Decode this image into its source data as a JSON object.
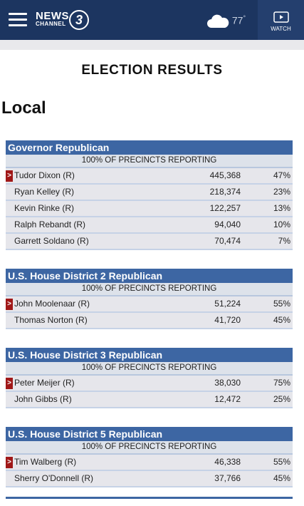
{
  "header": {
    "logo": {
      "line1": "NEWS",
      "line2": "CHANNEL",
      "number": "3"
    },
    "weather": {
      "temp": "77",
      "unit": "°"
    },
    "watch": "WATCH"
  },
  "page_title": "ELECTION RESULTS",
  "section": "Local",
  "races": [
    {
      "title": "Governor Republican",
      "reporting": "100% OF PRECINCTS REPORTING",
      "rows": [
        {
          "marker": ">",
          "name": "Tudor Dixon (R)",
          "votes": "445,368",
          "pct": "47%"
        },
        {
          "name": "Ryan Kelley (R)",
          "votes": "218,374",
          "pct": "23%"
        },
        {
          "name": "Kevin Rinke (R)",
          "votes": "122,257",
          "pct": "13%"
        },
        {
          "name": "Ralph Rebandt (R)",
          "votes": "94,040",
          "pct": "10%"
        },
        {
          "name": "Garrett Soldano (R)",
          "votes": "70,474",
          "pct": "7%"
        }
      ]
    },
    {
      "title": "U.S. House District 2 Republican",
      "reporting": "100% OF PRECINCTS REPORTING",
      "rows": [
        {
          "marker": ">",
          "name": "John Moolenaar (R)",
          "votes": "51,224",
          "pct": "55%"
        },
        {
          "name": "Thomas Norton (R)",
          "votes": "41,720",
          "pct": "45%"
        }
      ]
    },
    {
      "title": "U.S. House District 3 Republican",
      "reporting": "100% OF PRECINCTS REPORTING",
      "rows": [
        {
          "marker": ">",
          "name": "Peter Meijer (R)",
          "votes": "38,030",
          "pct": "75%"
        },
        {
          "name": "John Gibbs (R)",
          "votes": "12,472",
          "pct": "25%"
        }
      ]
    },
    {
      "title": "U.S. House District 5 Republican",
      "reporting": "100% OF PRECINCTS REPORTING",
      "rows": [
        {
          "marker": ">",
          "name": "Tim Walberg (R)",
          "votes": "46,338",
          "pct": "55%"
        },
        {
          "name": "Sherry O'Donnell (R)",
          "votes": "37,766",
          "pct": "45%"
        }
      ]
    }
  ]
}
